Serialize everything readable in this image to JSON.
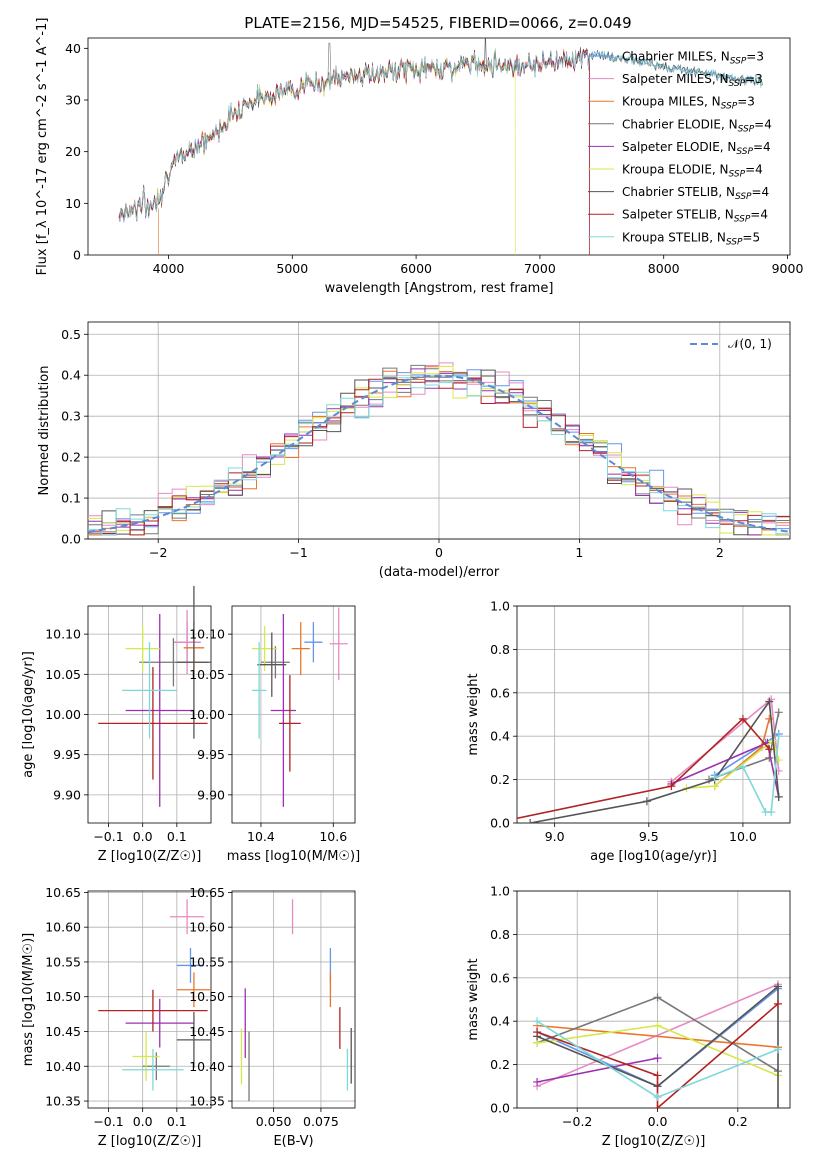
{
  "colors": {
    "chabrier_miles": "#6495ed",
    "salpeter_miles": "#e78ac3",
    "kroupa_miles": "#e8772e",
    "chabrier_elodie": "#777777",
    "salpeter_elodie": "#9b30b0",
    "kroupa_elodie": "#d6e84a",
    "chabrier_stelib": "#555555",
    "salpeter_stelib": "#b22222",
    "kroupa_stelib": "#7fd8d8",
    "grid": "#b0b0b0",
    "normal": "#5b8ad6"
  },
  "chart_data": [
    {
      "type": "line",
      "title": "PLATE=2156, MJD=54525, FIBERID=0066, z=0.049",
      "xlabel": "wavelength [Angstrom, rest frame]",
      "ylabel": "Flux [f_λ 10^-17 erg cm^-2 s^-1 A^-1]",
      "xlim": [
        3350,
        9020
      ],
      "ylim": [
        0,
        42
      ],
      "xticks": [
        "4000",
        "5000",
        "6000",
        "7000",
        "8000",
        "9000"
      ],
      "yticks": [
        "0",
        "10",
        "20",
        "30",
        "40"
      ],
      "grid": false,
      "legend": "right",
      "series": [
        {
          "name": "Chabrier MILES, N_SSP=3"
        },
        {
          "name": "Salpeter MILES, N_SSP=3"
        },
        {
          "name": "Kroupa MILES, N_SSP=3"
        },
        {
          "name": "Chabrier ELODIE, N_SSP=4"
        },
        {
          "name": "Salpeter ELODIE, N_SSP=4"
        },
        {
          "name": "Kroupa ELODIE, N_SSP=4"
        },
        {
          "name": "Chabrier STELIB, N_SSP=4"
        },
        {
          "name": "Salpeter STELIB, N_SSP=4"
        },
        {
          "name": "Kroupa STELIB, N_SSP=5"
        }
      ],
      "x": [
        3600,
        3700,
        3800,
        3850,
        3900,
        3950,
        4000,
        4100,
        4200,
        4300,
        4400,
        4500,
        4600,
        4700,
        4800,
        4900,
        5000,
        5100,
        5200,
        5300,
        5400,
        5500,
        5600,
        5700,
        5800,
        5900,
        6000,
        6100,
        6200,
        6300,
        6400,
        6500,
        6600,
        6700,
        6800,
        6900,
        7000,
        7100,
        7200,
        7300,
        7400,
        7500,
        7600,
        7700,
        7800,
        7900,
        8000,
        8100,
        8200,
        8300,
        8400,
        8500,
        8600,
        8700,
        8800
      ],
      "y": [
        8,
        9,
        10,
        9,
        11,
        13,
        16,
        19,
        21,
        22,
        24,
        27,
        29,
        30,
        31,
        31.5,
        32,
        33,
        33,
        34,
        34,
        35,
        35,
        35,
        35.5,
        36,
        36,
        36,
        36.5,
        36,
        37,
        37,
        37,
        37,
        36.5,
        37,
        37,
        37.5,
        38,
        38,
        38.5,
        39,
        38,
        38,
        37.5,
        37,
        36.5,
        36,
        36,
        35.5,
        35,
        34.5,
        34,
        34,
        33.5
      ]
    },
    {
      "type": "line",
      "xlabel": "(data-model)/error",
      "ylabel": "Normed distribution",
      "xlim": [
        -2.5,
        2.5
      ],
      "ylim": [
        0,
        0.53
      ],
      "xticks": [
        "−2",
        "−1",
        "0",
        "1",
        "2"
      ],
      "yticks": [
        "0.0",
        "0.1",
        "0.2",
        "0.3",
        "0.4",
        "0.5"
      ],
      "grid": true,
      "legend": "top-right",
      "legend_label": "𝒩(0, 1)"
    },
    {
      "type": "scatter",
      "xlabel": "Z [log10(Z/Z☉)]",
      "ylabel": "age  [log10(age/yr)]",
      "xlim": [
        -0.16,
        0.2
      ],
      "ylim": [
        9.865,
        10.135
      ],
      "xticks": [
        "−0.1",
        "0.0",
        "0.1"
      ],
      "yticks": [
        "9.90",
        "9.95",
        "10.00",
        "10.05",
        "10.10"
      ],
      "points": [
        {
          "s": "chabrier_miles",
          "x": 0.13,
          "xe": 0.04,
          "y": 10.09,
          "ye": 0.025
        },
        {
          "s": "salpeter_miles",
          "x": 0.13,
          "xe": 0.04,
          "y": 10.09,
          "ye": 0.04
        },
        {
          "s": "kroupa_miles",
          "x": 0.15,
          "xe": 0.03,
          "y": 10.083,
          "ye": 0.033
        },
        {
          "s": "chabrier_elodie",
          "x": 0.09,
          "xe": 0.1,
          "y": 10.065,
          "ye": 0.03
        },
        {
          "s": "salpeter_elodie",
          "x": 0.05,
          "xe": 0.1,
          "y": 10.005,
          "ye": 0.12
        },
        {
          "s": "kroupa_elodie",
          "x": 0.0,
          "xe": 0.05,
          "y": 10.082,
          "ye": 0.028
        },
        {
          "s": "chabrier_stelib",
          "x": 0.15,
          "xe": 0.05,
          "y": 10.065,
          "ye": 0.095
        },
        {
          "s": "salpeter_stelib",
          "x": 0.03,
          "xe": 0.16,
          "y": 9.989,
          "ye": 0.07
        },
        {
          "s": "kroupa_stelib",
          "x": 0.02,
          "xe": 0.08,
          "y": 10.03,
          "ye": 0.06
        }
      ]
    },
    {
      "type": "scatter",
      "xlabel": "mass [log10(M/M☉)]",
      "ylabel": "",
      "xlim": [
        10.32,
        10.66
      ],
      "ylim": [
        9.865,
        10.135
      ],
      "xticks": [
        "10.4",
        "10.6"
      ],
      "yticks": [
        "9.90",
        "9.95",
        "10.00",
        "10.05",
        "10.10"
      ],
      "points": [
        {
          "s": "chabrier_miles",
          "x": 10.545,
          "xe": 0.025,
          "y": 10.09,
          "ye": 0.025
        },
        {
          "s": "salpeter_miles",
          "x": 10.615,
          "xe": 0.025,
          "y": 10.088,
          "ye": 0.045
        },
        {
          "s": "kroupa_miles",
          "x": 10.51,
          "xe": 0.025,
          "y": 10.082,
          "ye": 0.033
        },
        {
          "s": "chabrier_elodie",
          "x": 10.44,
          "xe": 0.04,
          "y": 10.065,
          "ye": 0.02
        },
        {
          "s": "salpeter_elodie",
          "x": 10.462,
          "xe": 0.035,
          "y": 10.005,
          "ye": 0.12
        },
        {
          "s": "kroupa_elodie",
          "x": 10.41,
          "xe": 0.035,
          "y": 10.082,
          "ye": 0.028
        },
        {
          "s": "chabrier_stelib",
          "x": 10.43,
          "xe": 0.04,
          "y": 10.062,
          "ye": 0.04
        },
        {
          "s": "salpeter_stelib",
          "x": 10.48,
          "xe": 0.03,
          "y": 9.989,
          "ye": 0.06
        },
        {
          "s": "kroupa_stelib",
          "x": 10.395,
          "xe": 0.02,
          "y": 10.03,
          "ye": 0.06
        }
      ]
    },
    {
      "type": "line",
      "xlabel": "age  [log10(age/yr)]",
      "ylabel": "mass weight",
      "xlim": [
        8.8,
        10.25
      ],
      "ylim": [
        0,
        1
      ],
      "xticks": [
        "9.0",
        "9.5",
        "10.0"
      ],
      "yticks": [
        "0.0",
        "0.2",
        "0.4",
        "0.6",
        "0.8",
        "1.0"
      ],
      "series": [
        {
          "s": "chabrier_miles",
          "x": [
            9.85,
            10.12,
            10.19
          ],
          "y": [
            0.22,
            0.37,
            0.41
          ]
        },
        {
          "s": "salpeter_miles",
          "x": [
            9.62,
            10.15,
            10.19
          ],
          "y": [
            0.19,
            0.57,
            0.24
          ]
        },
        {
          "s": "kroupa_miles",
          "x": [
            9.85,
            10.1,
            10.14
          ],
          "y": [
            0.17,
            0.35,
            0.48
          ]
        },
        {
          "s": "chabrier_elodie",
          "x": [
            9.82,
            10.14,
            10.19
          ],
          "y": [
            0.2,
            0.3,
            0.51
          ]
        },
        {
          "s": "salpeter_elodie",
          "x": [
            9.62,
            10.13,
            10.19
          ],
          "y": [
            0.18,
            0.37,
            0.12
          ]
        },
        {
          "s": "kroupa_elodie",
          "x": [
            9.7,
            9.85,
            10.16,
            10.19
          ],
          "y": [
            0.16,
            0.17,
            0.38,
            0.29
          ]
        },
        {
          "s": "chabrier_stelib",
          "x": [
            8.87,
            9.49,
            9.85,
            10.14,
            10.19
          ],
          "y": [
            0.0,
            0.1,
            0.2,
            0.56,
            0.12
          ]
        },
        {
          "s": "salpeter_stelib",
          "x": [
            8.68,
            9.62,
            10.0,
            10.14
          ],
          "y": [
            0.0,
            0.17,
            0.48,
            0.34
          ]
        },
        {
          "s": "kroupa_stelib",
          "x": [
            9.85,
            10.0,
            10.12,
            10.15,
            10.19
          ],
          "y": [
            0.21,
            0.26,
            0.05,
            0.05,
            0.4
          ]
        }
      ]
    },
    {
      "type": "scatter",
      "xlabel": "Z [log10(Z/Z☉)]",
      "ylabel": "mass [log10(M/M☉)]",
      "xlim": [
        -0.16,
        0.2
      ],
      "ylim": [
        10.34,
        10.652
      ],
      "xticks": [
        "−0.1",
        "0.0",
        "0.1"
      ],
      "yticks": [
        "10.35",
        "10.40",
        "10.45",
        "10.50",
        "10.55",
        "10.60",
        "10.65"
      ],
      "points": [
        {
          "s": "chabrier_miles",
          "x": 0.14,
          "xe": 0.04,
          "y": 10.545,
          "ye": 0.025
        },
        {
          "s": "salpeter_miles",
          "x": 0.13,
          "xe": 0.05,
          "y": 10.615,
          "ye": 0.025
        },
        {
          "s": "kroupa_miles",
          "x": 0.15,
          "xe": 0.05,
          "y": 10.51,
          "ye": 0.025
        },
        {
          "s": "chabrier_elodie",
          "x": 0.04,
          "xe": 0.04,
          "y": 10.4,
          "ye": 0.02
        },
        {
          "s": "salpeter_elodie",
          "x": 0.05,
          "xe": 0.1,
          "y": 10.462,
          "ye": 0.035
        },
        {
          "s": "kroupa_elodie",
          "x": 0.01,
          "xe": 0.04,
          "y": 10.414,
          "ye": 0.035
        },
        {
          "s": "chabrier_stelib",
          "x": 0.15,
          "xe": 0.05,
          "y": 10.438,
          "ye": 0.04
        },
        {
          "s": "salpeter_stelib",
          "x": 0.03,
          "xe": 0.16,
          "y": 10.48,
          "ye": 0.03
        },
        {
          "s": "kroupa_stelib",
          "x": 0.03,
          "xe": 0.09,
          "y": 10.395,
          "ye": 0.03
        }
      ]
    },
    {
      "type": "scatter",
      "xlabel": "E(B-V)",
      "ylabel": "",
      "xlim": [
        0.028,
        0.093
      ],
      "ylim": [
        10.34,
        10.652
      ],
      "xticks": [
        "0.050",
        "0.075"
      ],
      "yticks": [
        "10.35",
        "10.40",
        "10.45",
        "10.50",
        "10.55",
        "10.60",
        "10.65"
      ],
      "points": [
        {
          "s": "chabrier_miles",
          "x": 0.08,
          "xe": 0.0,
          "y": 10.545,
          "ye": 0.025
        },
        {
          "s": "salpeter_miles",
          "x": 0.06,
          "xe": 0.0,
          "y": 10.615,
          "ye": 0.025
        },
        {
          "s": "kroupa_miles",
          "x": 0.08,
          "xe": 0.0,
          "y": 10.51,
          "ye": 0.025
        },
        {
          "s": "chabrier_elodie",
          "x": 0.037,
          "xe": 0.0,
          "y": 10.4,
          "ye": 0.05
        },
        {
          "s": "salpeter_elodie",
          "x": 0.035,
          "xe": 0.0,
          "y": 10.462,
          "ye": 0.05
        },
        {
          "s": "kroupa_elodie",
          "x": 0.033,
          "xe": 0.0,
          "y": 10.414,
          "ye": 0.04
        },
        {
          "s": "chabrier_stelib",
          "x": 0.091,
          "xe": 0.0,
          "y": 10.415,
          "ye": 0.04
        },
        {
          "s": "salpeter_stelib",
          "x": 0.085,
          "xe": 0.0,
          "y": 10.455,
          "ye": 0.03
        },
        {
          "s": "kroupa_stelib",
          "x": 0.089,
          "xe": 0.0,
          "y": 10.395,
          "ye": 0.03
        }
      ]
    },
    {
      "type": "line",
      "xlabel": "Z [log10(Z/Z☉)]",
      "ylabel": "mass weight",
      "xlim": [
        -0.35,
        0.33
      ],
      "ylim": [
        0,
        1
      ],
      "xticks": [
        "−0.2",
        "0.0",
        "0.2"
      ],
      "yticks": [
        "0.0",
        "0.2",
        "0.4",
        "0.6",
        "0.8",
        "1.0"
      ],
      "series": [
        {
          "s": "chabrier_miles",
          "x": [
            -0.3,
            0.0,
            0.3
          ],
          "y": [
            0.35,
            0.1,
            0.55
          ]
        },
        {
          "s": "salpeter_miles",
          "x": [
            -0.3,
            0.3
          ],
          "y": [
            0.1,
            0.57
          ]
        },
        {
          "s": "kroupa_miles",
          "x": [
            -0.3,
            0.3
          ],
          "y": [
            0.38,
            0.28
          ]
        },
        {
          "s": "chabrier_elodie",
          "x": [
            -0.3,
            0.0,
            0.3
          ],
          "y": [
            0.3,
            0.51,
            0.17
          ]
        },
        {
          "s": "salpeter_elodie",
          "x": [
            -0.3,
            0.0
          ],
          "y": [
            0.12,
            0.23
          ]
        },
        {
          "s": "kroupa_elodie",
          "x": [
            -0.3,
            0.0,
            0.3
          ],
          "y": [
            0.3,
            0.38,
            0.15
          ]
        },
        {
          "s": "chabrier_stelib",
          "x": [
            -0.3,
            0.0,
            0.3,
            0.3
          ],
          "y": [
            0.33,
            0.1,
            0.56,
            0.0
          ]
        },
        {
          "s": "salpeter_stelib",
          "x": [
            -0.3,
            0.0,
            0.0,
            0.3
          ],
          "y": [
            0.35,
            0.15,
            0.0,
            0.48
          ]
        },
        {
          "s": "kroupa_stelib",
          "x": [
            -0.3,
            0.0,
            0.3
          ],
          "y": [
            0.4,
            0.05,
            0.27
          ]
        }
      ]
    }
  ]
}
